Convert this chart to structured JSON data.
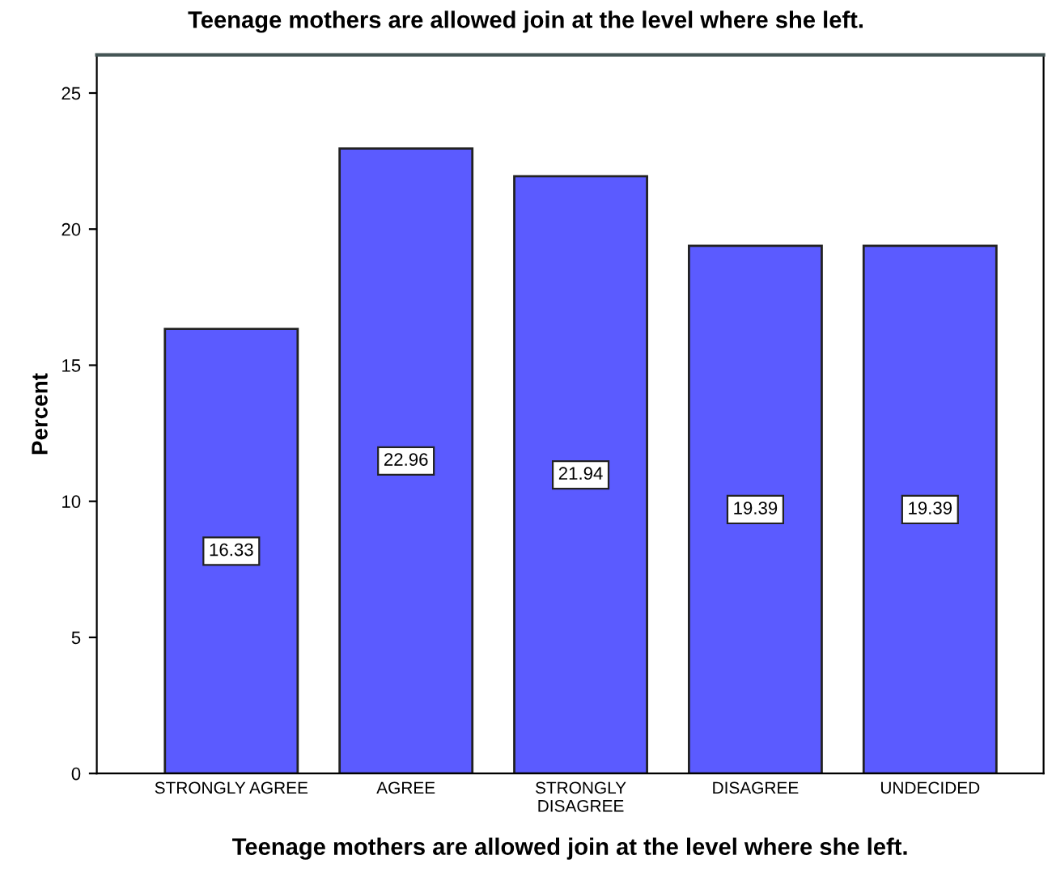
{
  "chart_data": {
    "type": "bar",
    "title": "Teenage mothers are allowed join at the level where she left.",
    "xlabel": "Teenage mothers are allowed join at the level where she left.",
    "ylabel": "Percent",
    "categories": [
      "STRONGLY AGREE",
      "AGREE",
      "STRONGLY\nDISAGREE",
      "DISAGREE",
      "UNDECIDED"
    ],
    "values": [
      16.33,
      22.96,
      21.94,
      19.39,
      19.39
    ],
    "color": "#5b5bff",
    "ylim": [
      0,
      26.4
    ],
    "yticks": [
      0,
      5,
      10,
      15,
      20,
      25
    ],
    "grid": false,
    "data_labels": true
  }
}
